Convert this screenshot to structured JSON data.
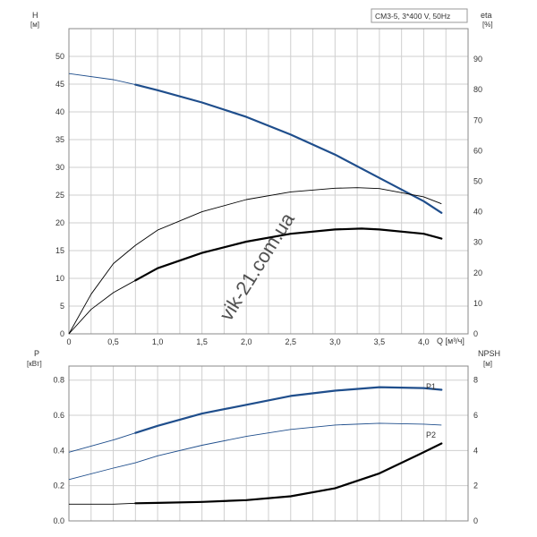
{
  "legend_box": "CM3-5, 3*400 V, 50Hz",
  "watermark": "vik-21.com.ua",
  "chart_data": [
    {
      "type": "line",
      "title": "",
      "xlabel": "Q [м³/ч]",
      "x_ticks": [
        "0",
        "0,5",
        "1,0",
        "1,5",
        "2,0",
        "2,5",
        "3,0",
        "3,5",
        "4,0"
      ],
      "xlim": [
        0,
        4.5
      ],
      "left_axis": {
        "label": "H",
        "unit": "[м]",
        "ticks": [
          "0",
          "5",
          "10",
          "15",
          "20",
          "25",
          "30",
          "35",
          "40",
          "45",
          "50"
        ],
        "ylim": [
          0,
          55
        ]
      },
      "right_axis": {
        "label": "eta",
        "unit": "[%]",
        "ticks": [
          "0",
          "10",
          "20",
          "30",
          "40",
          "50",
          "60",
          "70",
          "80",
          "90"
        ],
        "ylim": [
          0,
          100
        ]
      },
      "grid": true,
      "series": [
        {
          "axis": "left",
          "color": "#1f4e8c",
          "style": "thin-then-thick",
          "thick_from_x": 0.75,
          "x": [
            0,
            0.5,
            0.75,
            1.0,
            1.5,
            2.0,
            2.5,
            3.0,
            3.5,
            4.0,
            4.2
          ],
          "y": [
            46.9,
            45.8,
            44.9,
            43.9,
            41.7,
            39.1,
            35.9,
            32.3,
            28.1,
            23.9,
            21.8
          ]
        },
        {
          "axis": "right",
          "color": "#000000",
          "style": "thin",
          "x": [
            0,
            0.25,
            0.5,
            0.75,
            1.0,
            1.5,
            2.0,
            2.5,
            3.0,
            3.25,
            3.5,
            4.0,
            4.2
          ],
          "y": [
            0,
            13,
            23,
            29,
            34,
            40,
            44,
            46.5,
            47.7,
            47.9,
            47.6,
            44.9,
            42.6
          ]
        },
        {
          "axis": "right",
          "color": "#000000",
          "style": "thin-then-thick",
          "thick_from_x": 0.75,
          "x": [
            0,
            0.25,
            0.5,
            0.75,
            1.0,
            1.5,
            2.0,
            2.5,
            3.0,
            3.3,
            3.5,
            4.0,
            4.2
          ],
          "y": [
            0,
            8,
            13.5,
            17.5,
            21.5,
            26.5,
            30.2,
            32.8,
            34.2,
            34.5,
            34.2,
            32.8,
            31.2
          ]
        }
      ]
    },
    {
      "type": "line",
      "title": "",
      "xlabel": "",
      "xlim": [
        0,
        4.5
      ],
      "left_axis": {
        "label": "P",
        "unit": "[кВт]",
        "ticks": [
          "0.0",
          "0.2",
          "0.4",
          "0.6",
          "0.8"
        ],
        "ylim": [
          0,
          0.88
        ]
      },
      "right_axis": {
        "label": "NPSH",
        "unit": "[м]",
        "ticks": [
          "0",
          "2",
          "4",
          "6",
          "8"
        ],
        "ylim": [
          0,
          8.8
        ]
      },
      "grid": true,
      "series": [
        {
          "name": "P1",
          "axis": "left",
          "color": "#1f4e8c",
          "style": "thin-then-thick",
          "thick_from_x": 0.75,
          "x": [
            0,
            0.5,
            0.75,
            1.0,
            1.5,
            2.0,
            2.5,
            3.0,
            3.5,
            4.0,
            4.2
          ],
          "y": [
            0.39,
            0.46,
            0.5,
            0.54,
            0.61,
            0.66,
            0.71,
            0.74,
            0.76,
            0.755,
            0.745
          ]
        },
        {
          "name": "P2",
          "axis": "left",
          "color": "#1f4e8c",
          "style": "thin",
          "x": [
            0,
            0.5,
            0.75,
            1.0,
            1.5,
            2.0,
            2.5,
            3.0,
            3.5,
            4.0,
            4.2
          ],
          "y": [
            0.235,
            0.3,
            0.33,
            0.37,
            0.43,
            0.48,
            0.52,
            0.545,
            0.555,
            0.55,
            0.545
          ]
        },
        {
          "axis": "right",
          "color": "#000000",
          "style": "thin-then-thick",
          "thick_from_x": 0.75,
          "x": [
            0,
            0.5,
            0.75,
            1.0,
            1.5,
            2.0,
            2.5,
            3.0,
            3.5,
            4.0,
            4.2
          ],
          "y": [
            0.95,
            0.95,
            1.0,
            1.02,
            1.08,
            1.18,
            1.4,
            1.85,
            2.7,
            3.9,
            4.4
          ]
        }
      ]
    }
  ]
}
